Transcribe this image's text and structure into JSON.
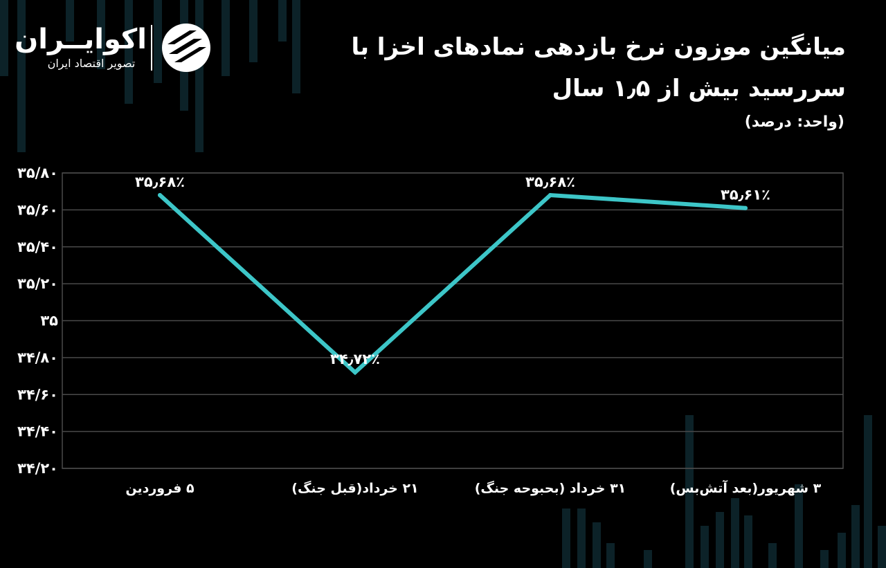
{
  "header": {
    "title": "میانگین موزون نرخ بازدهی نمادهای اخزا با سررسید بیش از ۱٫۵ سال",
    "unit": "(واحد: درصد)"
  },
  "brand": {
    "name": "اکوایــران",
    "tagline": "تصویر اقتصاد ایران"
  },
  "chart_data": {
    "type": "line",
    "categories": [
      "۵ فروردین",
      "۲۱ خرداد(قبل جنگ)",
      "۳۱ خرداد (بحبوحه جنگ)",
      "۳ شهریور(بعد آتش‌بس)"
    ],
    "series": [
      {
        "values": [
          35.68,
          34.72,
          35.68,
          35.61
        ]
      }
    ],
    "data_labels": [
      "۳۵٫۶۸٪",
      "۳۴٫۷۲٪",
      "۳۵٫۶۸٪",
      "۳۵٫۶۱٪"
    ],
    "yticks": [
      34.2,
      34.4,
      34.6,
      34.8,
      35.0,
      35.2,
      35.4,
      35.6,
      35.8
    ],
    "ytick_labels": [
      "۳۴/۲۰",
      "۳۴/۴۰",
      "۳۴/۶۰",
      "۳۴/۸۰",
      "۳۵",
      "۳۵/۲۰",
      "۳۵/۴۰",
      "۳۵/۶۰",
      "۳۵/۸۰"
    ],
    "ylim": [
      34.2,
      35.8
    ],
    "grid": true,
    "colors": {
      "line": "#3dc6c8",
      "grid": "#4a4a4a",
      "background": "#000000"
    }
  }
}
